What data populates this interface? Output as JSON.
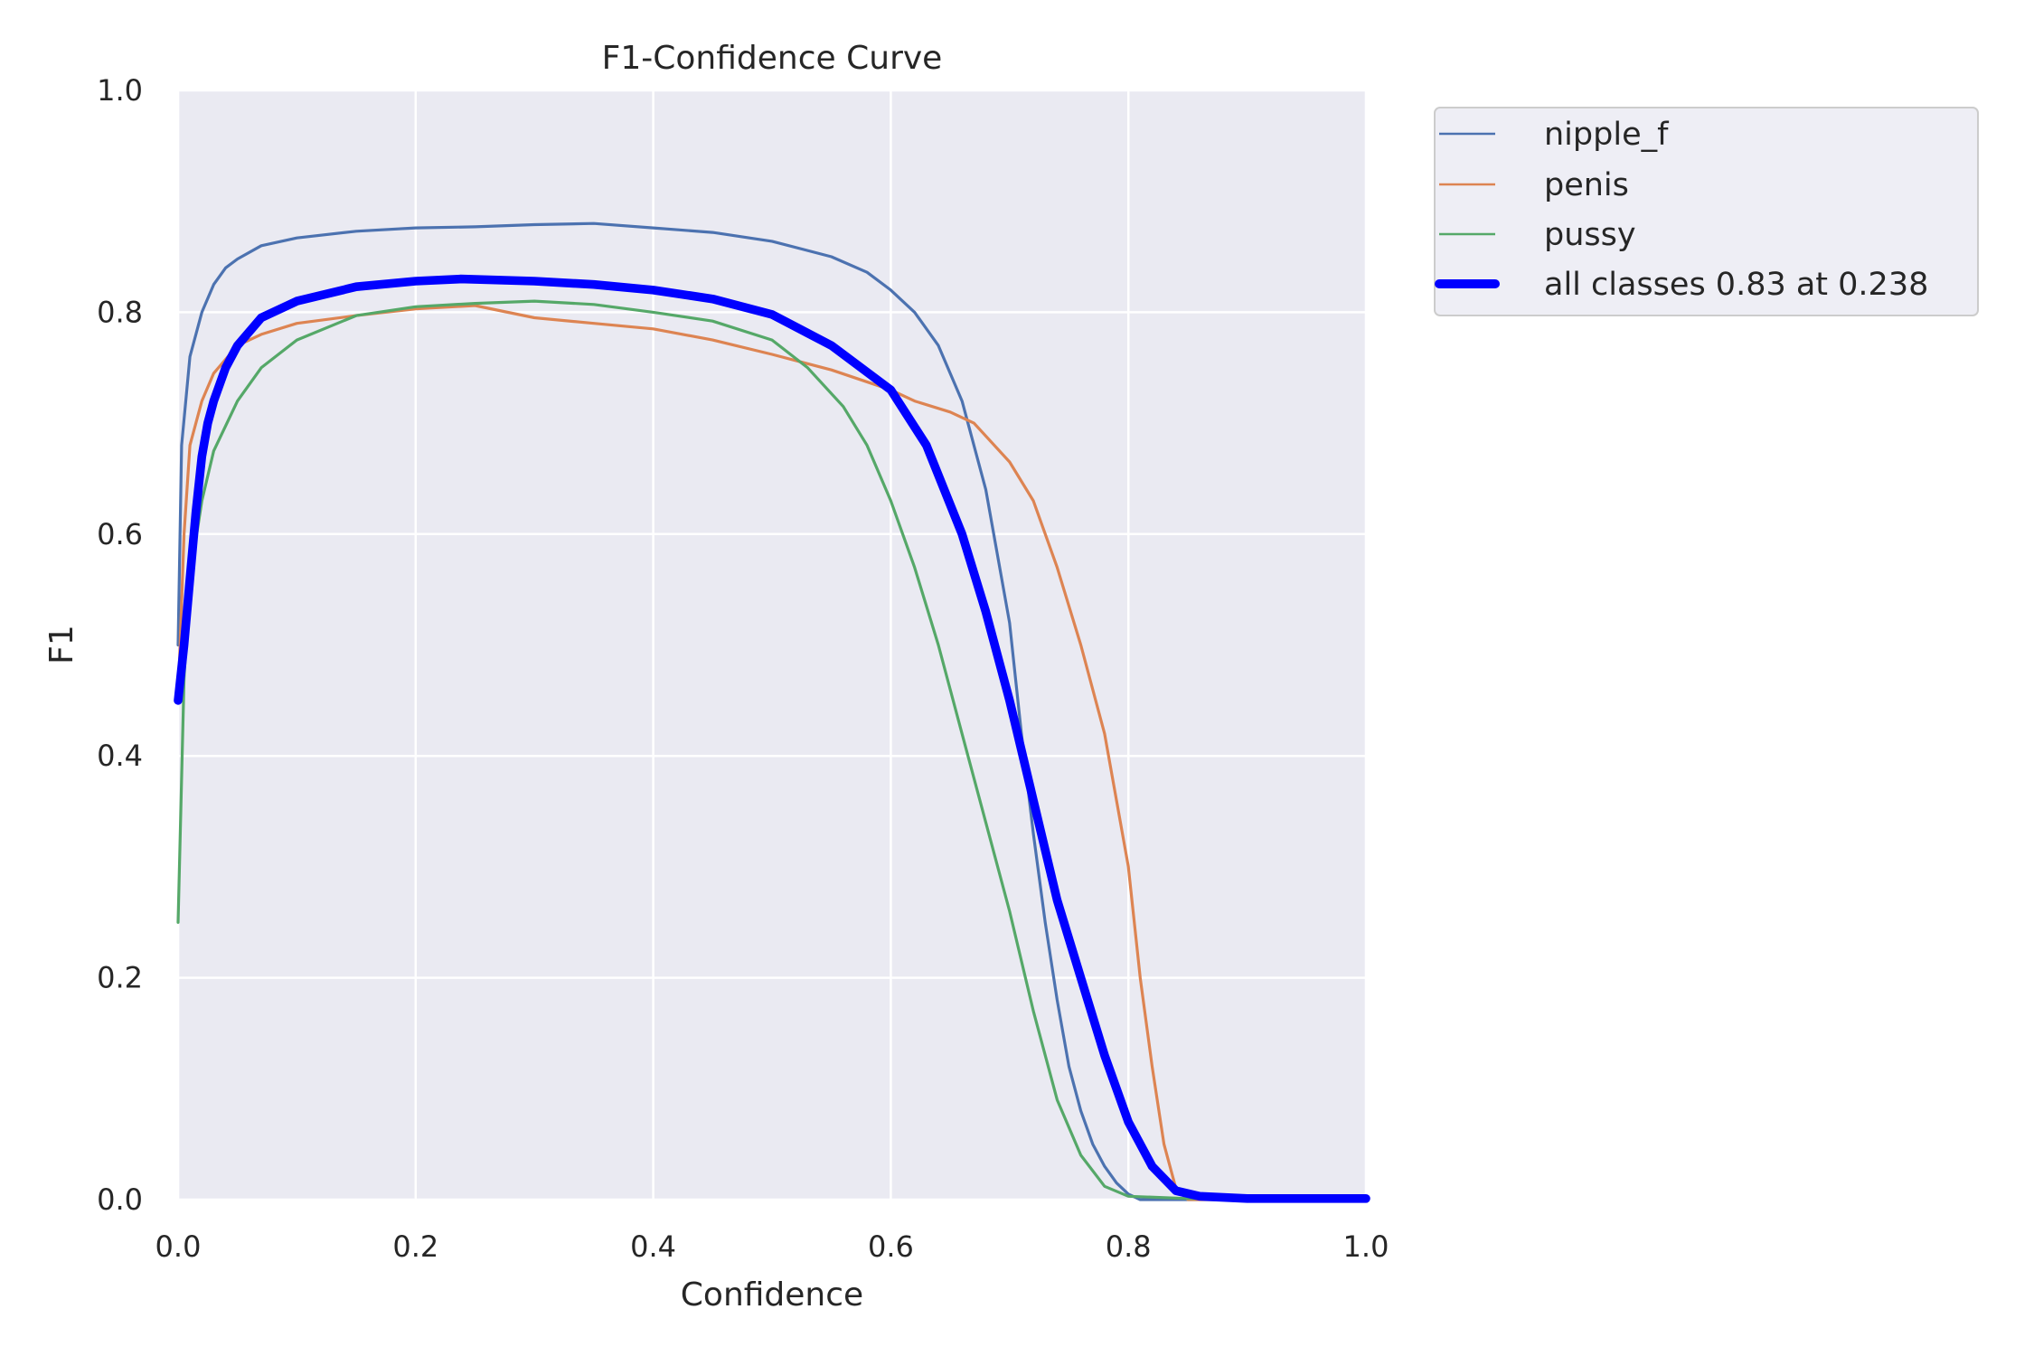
{
  "chart_data": {
    "type": "line",
    "title": "F1-Confidence Curve",
    "xlabel": "Confidence",
    "ylabel": "F1",
    "xlim": [
      0,
      1
    ],
    "ylim": [
      0,
      1
    ],
    "grid": true,
    "legend_position": "upper right outside",
    "x_ticks": [
      "0.0",
      "0.2",
      "0.4",
      "0.6",
      "0.8",
      "1.0"
    ],
    "y_ticks": [
      "0.0",
      "0.2",
      "0.4",
      "0.6",
      "0.8",
      "1.0"
    ],
    "series": [
      {
        "name": "nipple_f",
        "color": "#4c72b0",
        "linewidth": 2,
        "x": [
          0.0,
          0.003,
          0.01,
          0.02,
          0.03,
          0.04,
          0.05,
          0.07,
          0.1,
          0.15,
          0.2,
          0.25,
          0.3,
          0.35,
          0.4,
          0.45,
          0.5,
          0.55,
          0.58,
          0.6,
          0.62,
          0.64,
          0.66,
          0.68,
          0.7,
          0.71,
          0.72,
          0.73,
          0.74,
          0.75,
          0.76,
          0.77,
          0.78,
          0.79,
          0.8,
          0.81,
          0.85,
          1.0
        ],
        "y": [
          0.5,
          0.68,
          0.76,
          0.8,
          0.825,
          0.84,
          0.848,
          0.86,
          0.867,
          0.873,
          0.876,
          0.877,
          0.879,
          0.88,
          0.876,
          0.872,
          0.864,
          0.85,
          0.836,
          0.82,
          0.8,
          0.77,
          0.72,
          0.64,
          0.52,
          0.42,
          0.33,
          0.25,
          0.18,
          0.12,
          0.08,
          0.05,
          0.03,
          0.015,
          0.005,
          0.0,
          0.0,
          0.0
        ]
      },
      {
        "name": "penis",
        "color": "#dd8452",
        "linewidth": 2,
        "x": [
          0.0,
          0.005,
          0.01,
          0.02,
          0.03,
          0.05,
          0.07,
          0.1,
          0.15,
          0.2,
          0.25,
          0.3,
          0.35,
          0.4,
          0.45,
          0.5,
          0.55,
          0.6,
          0.62,
          0.65,
          0.67,
          0.7,
          0.72,
          0.74,
          0.76,
          0.78,
          0.8,
          0.81,
          0.82,
          0.83,
          0.84,
          0.85,
          1.0
        ],
        "y": [
          0.45,
          0.6,
          0.68,
          0.72,
          0.745,
          0.77,
          0.78,
          0.79,
          0.797,
          0.803,
          0.806,
          0.795,
          0.79,
          0.785,
          0.775,
          0.762,
          0.748,
          0.73,
          0.72,
          0.71,
          0.7,
          0.665,
          0.63,
          0.57,
          0.5,
          0.42,
          0.3,
          0.2,
          0.12,
          0.05,
          0.01,
          0.0,
          0.0
        ]
      },
      {
        "name": "pussy",
        "color": "#55a868",
        "linewidth": 2,
        "x": [
          0.0,
          0.005,
          0.01,
          0.02,
          0.03,
          0.05,
          0.07,
          0.1,
          0.15,
          0.2,
          0.25,
          0.3,
          0.35,
          0.4,
          0.45,
          0.5,
          0.53,
          0.56,
          0.58,
          0.6,
          0.62,
          0.64,
          0.66,
          0.68,
          0.7,
          0.72,
          0.74,
          0.76,
          0.78,
          0.8,
          0.85,
          1.0
        ],
        "y": [
          0.25,
          0.47,
          0.56,
          0.63,
          0.675,
          0.72,
          0.75,
          0.775,
          0.797,
          0.805,
          0.808,
          0.81,
          0.807,
          0.8,
          0.792,
          0.775,
          0.75,
          0.715,
          0.68,
          0.63,
          0.57,
          0.5,
          0.42,
          0.34,
          0.26,
          0.17,
          0.09,
          0.04,
          0.012,
          0.003,
          0.001,
          0.001
        ]
      },
      {
        "name": "all classes 0.83 at 0.238",
        "color": "#0000ff",
        "linewidth": 6,
        "x": [
          0.0,
          0.005,
          0.01,
          0.015,
          0.02,
          0.025,
          0.03,
          0.04,
          0.05,
          0.07,
          0.1,
          0.15,
          0.2,
          0.238,
          0.3,
          0.35,
          0.4,
          0.45,
          0.5,
          0.55,
          0.6,
          0.63,
          0.66,
          0.68,
          0.7,
          0.72,
          0.74,
          0.76,
          0.78,
          0.8,
          0.82,
          0.84,
          0.86,
          0.9,
          1.0
        ],
        "y": [
          0.45,
          0.5,
          0.56,
          0.62,
          0.67,
          0.7,
          0.72,
          0.75,
          0.77,
          0.795,
          0.81,
          0.823,
          0.828,
          0.83,
          0.828,
          0.825,
          0.82,
          0.812,
          0.798,
          0.77,
          0.73,
          0.68,
          0.6,
          0.53,
          0.45,
          0.36,
          0.27,
          0.2,
          0.13,
          0.07,
          0.03,
          0.008,
          0.003,
          0.001,
          0.001
        ]
      }
    ]
  },
  "legend": {
    "items": [
      {
        "label": "nipple_f",
        "color": "#4c72b0"
      },
      {
        "label": "penis",
        "color": "#dd8452"
      },
      {
        "label": "pussy",
        "color": "#55a868"
      },
      {
        "label": "all classes 0.83 at 0.238",
        "color": "#0000ff"
      }
    ]
  },
  "style": {
    "plot_bg": "#eaeaf2",
    "grid_color": "#ffffff",
    "text_color": "#262626"
  }
}
